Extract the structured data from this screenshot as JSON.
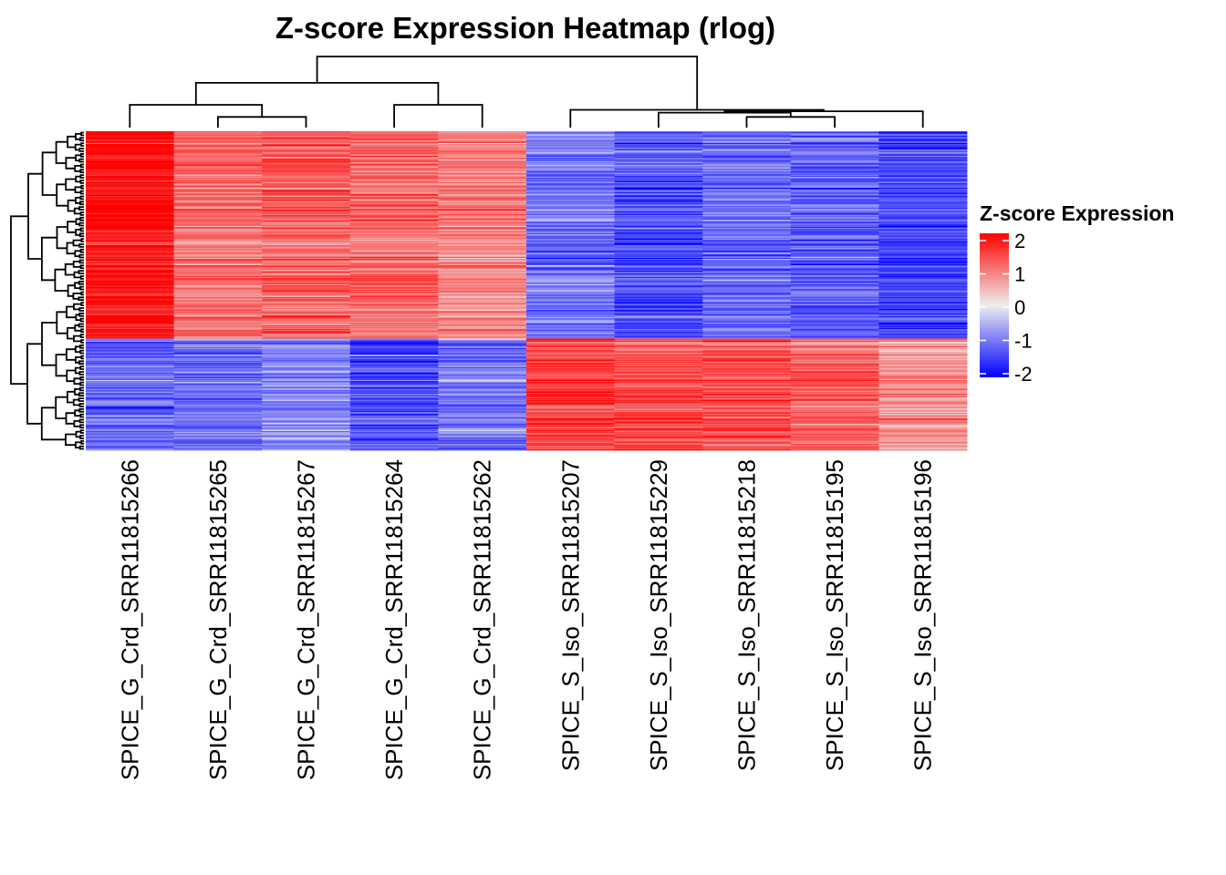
{
  "chart_data": {
    "type": "heatmap",
    "title": "Z-score Expression Heatmap (rlog)",
    "columns": [
      "SPICE_G_Crd_SRR11815266",
      "SPICE_G_Crd_SRR11815265",
      "SPICE_G_Crd_SRR11815267",
      "SPICE_G_Crd_SRR11815264",
      "SPICE_G_Crd_SRR11815262",
      "SPICE_S_Iso_SRR11815207",
      "SPICE_S_Iso_SRR11815229",
      "SPICE_S_Iso_SRR11815218",
      "SPICE_S_Iso_SRR11815195",
      "SPICE_S_Iso_SRR11815196"
    ],
    "groups": [
      {
        "name": "upper row cluster (genes higher in G_Crd)",
        "fraction_of_rows": 0.65,
        "column_means": [
          1.9,
          1.1,
          1.2,
          1.1,
          0.9,
          -1.0,
          -1.3,
          -1.1,
          -1.2,
          -1.4
        ]
      },
      {
        "name": "lower row cluster (genes higher in S_Iso)",
        "fraction_of_rows": 0.35,
        "column_means": [
          -1.1,
          -1.0,
          -0.9,
          -1.3,
          -1.0,
          1.5,
          1.4,
          1.4,
          1.2,
          0.8
        ]
      }
    ],
    "column_dendrogram": {
      "leaf_order": [
        0,
        1,
        2,
        3,
        4,
        5,
        6,
        7,
        8,
        9
      ],
      "merges": [
        {
          "left": 1,
          "right": 2,
          "height": 0.15
        },
        {
          "left": 0,
          "right": "m0",
          "height": 0.32
        },
        {
          "left": 3,
          "right": 4,
          "height": 0.32
        },
        {
          "left": "m1",
          "right": "m2",
          "height": 0.63
        },
        {
          "left": 7,
          "right": 8,
          "height": 0.15
        },
        {
          "left": 6,
          "right": "m4",
          "height": 0.21
        },
        {
          "left": 9,
          "right": "m5",
          "height": 0.23
        },
        {
          "left": 5,
          "right": "m6",
          "height": 0.25
        },
        {
          "left": "m3",
          "right": "m7",
          "height": 1.0
        }
      ]
    },
    "color_scale": {
      "low": "#0000FF",
      "mid": "#EEEEEE",
      "high": "#FF0000",
      "min": -2,
      "max": 2,
      "midpoint": 0
    },
    "legend": {
      "title": "Z-score Expression",
      "ticks": [
        "2",
        "1",
        "0",
        "-1",
        "-2"
      ],
      "tick_values": [
        2,
        1,
        0,
        -1,
        -2
      ],
      "placement": "right"
    },
    "row_count_approx": 300
  }
}
